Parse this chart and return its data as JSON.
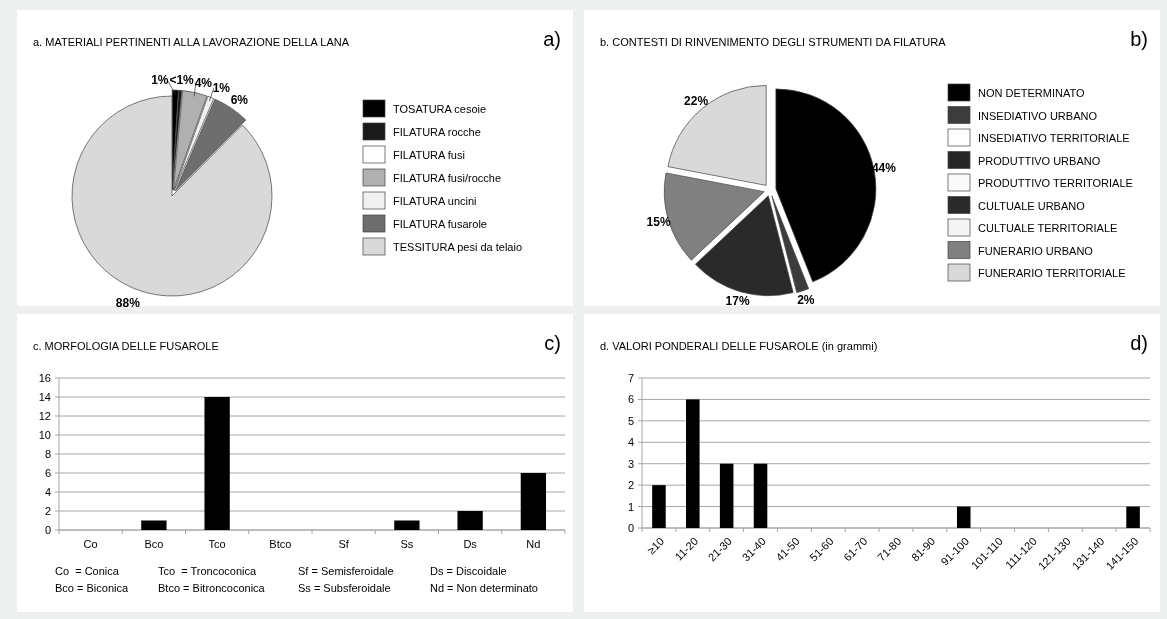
{
  "chart_data": [
    {
      "type": "pie",
      "title": "a. MATERIALI PERTINENTI ALLA LAVORAZIONE DELLA LANA",
      "annotations": [
        "a)"
      ],
      "categories": [
        "TOSATURA cesoie",
        "FILATURA rocche",
        "FILATURA fusi",
        "FILATURA fusi/rocche",
        "FILATURA uncini",
        "FILATURA fusarole",
        "TESSITURA pesi da telaio"
      ],
      "values": [
        1,
        0.5,
        0,
        4,
        1,
        6,
        88
      ],
      "value_labels": [
        "1%",
        "<1%",
        null,
        "4%",
        "1%",
        "6%",
        "88%"
      ],
      "colors": [
        "#000000",
        "#1a1a1a",
        "#ffffff",
        "#b0b0b0",
        "#f0f0f0",
        "#6e6e6e",
        "#d9d9d9"
      ],
      "legend": "right"
    },
    {
      "type": "pie",
      "title": "b. CONTESTI DI RINVENIMENTO DEGLI STRUMENTI DA FILATURA",
      "annotations": [
        "b)"
      ],
      "categories": [
        "NON DETERMINATO",
        "INSEDIATIVO URBANO",
        "INSEDIATIVO TERRITORIALE",
        "PRODUTTIVO URBANO",
        "PRODUTTIVO TERRITORIALE",
        "CULTUALE URBANO",
        "CULTUALE TERRITORIALE",
        "FUNERARIO URBANO",
        "FUNERARIO TERRITORIALE"
      ],
      "values": [
        44,
        2,
        0,
        0,
        0,
        17,
        0,
        15,
        22
      ],
      "value_labels": [
        "44%",
        "2%",
        null,
        null,
        null,
        "17%",
        null,
        "15%",
        "22%"
      ],
      "colors": [
        "#000000",
        "#3c3c3c",
        "#ffffff",
        "#262626",
        "#fafafa",
        "#2a2a2a",
        "#f5f5f5",
        "#808080",
        "#d9d9d9"
      ],
      "legend": "right"
    },
    {
      "type": "bar",
      "title": "c. MORFOLOGIA DELLE FUSAROLE",
      "annotations": [
        "c)",
        "Co  = Conica",
        "Bco = Biconica",
        "Tco  = Troncoconica",
        "Btco = Bitroncoconica",
        "Sf = Semisferoidale",
        "Ss = Subsferoidale",
        "Ds = Discoidale",
        "Nd = Non determinato"
      ],
      "categories": [
        "Co",
        "Bco",
        "Tco",
        "Btco",
        "Sf",
        "Ss",
        "Ds",
        "Nd"
      ],
      "values": [
        0,
        1,
        14,
        0,
        0,
        1,
        2,
        6
      ],
      "color": "#000000",
      "ylim": [
        0,
        16
      ],
      "yticks": [
        0,
        2,
        4,
        6,
        8,
        10,
        12,
        14,
        16
      ],
      "grid": "y"
    },
    {
      "type": "bar",
      "title": "d. VALORI PONDERALI DELLE FUSAROLE (in grammi)",
      "annotations": [
        "d)"
      ],
      "categories": [
        "≥10",
        "11-20",
        "21-30",
        "31-40",
        "41-50",
        "51-60",
        "61-70",
        "71-80",
        "81-90",
        "91-100",
        "101-110",
        "111-120",
        "121-130",
        "131-140",
        "141-150"
      ],
      "values": [
        2,
        6,
        3,
        3,
        0,
        0,
        0,
        0,
        0,
        1,
        0,
        0,
        0,
        0,
        1
      ],
      "color": "#000000",
      "ylim": [
        0,
        7
      ],
      "yticks": [
        0,
        1,
        2,
        3,
        4,
        5,
        6,
        7
      ],
      "grid": "y"
    }
  ]
}
